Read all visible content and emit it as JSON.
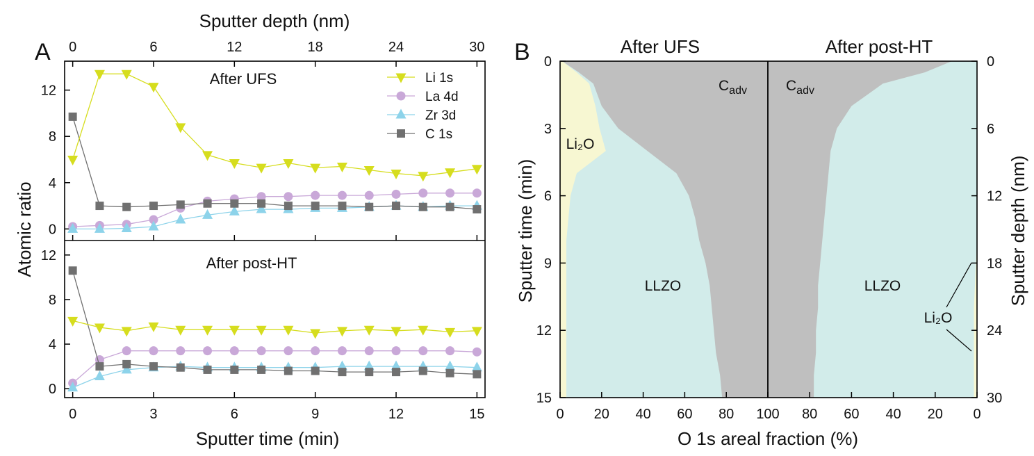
{
  "chart_data": [
    {
      "panel": "A",
      "type": "line",
      "subplots": [
        {
          "title": "After UFS",
          "ylim": [
            -1,
            14.5
          ],
          "yticks": [
            0,
            4,
            8,
            12
          ],
          "series": [
            {
              "name": "Li 1s",
              "marker": "triangle-down",
              "color": "#d6dd1e",
              "values": [
                6.0,
                13.4,
                13.4,
                12.3,
                8.8,
                6.4,
                5.7,
                5.3,
                5.7,
                5.3,
                5.4,
                5.1,
                4.8,
                4.6,
                4.9,
                5.2
              ]
            },
            {
              "name": "La 4d",
              "marker": "circle",
              "color": "#c9a8d8",
              "values": [
                0.2,
                0.3,
                0.4,
                0.8,
                1.8,
                2.4,
                2.6,
                2.8,
                2.8,
                2.9,
                2.9,
                2.9,
                3.0,
                3.1,
                3.1,
                3.1
              ]
            },
            {
              "name": "Zr 3d",
              "marker": "triangle-up",
              "color": "#8dd3ea",
              "values": [
                0.0,
                0.0,
                0.05,
                0.2,
                0.8,
                1.2,
                1.5,
                1.7,
                1.7,
                1.8,
                1.8,
                1.9,
                2.0,
                1.9,
                2.0,
                2.0
              ]
            },
            {
              "name": "C 1s",
              "marker": "square",
              "color": "#707070",
              "values": [
                9.7,
                2.0,
                1.9,
                2.0,
                2.1,
                2.2,
                2.2,
                2.2,
                2.0,
                2.0,
                2.0,
                1.9,
                2.0,
                1.9,
                1.9,
                1.7
              ]
            }
          ]
        },
        {
          "title": "After post-HT",
          "ylim": [
            -0.8,
            13.3
          ],
          "yticks": [
            0,
            4,
            8,
            12
          ],
          "series": [
            {
              "name": "Li 1s",
              "marker": "triangle-down",
              "color": "#d6dd1e",
              "values": [
                6.1,
                5.5,
                5.2,
                5.6,
                5.3,
                5.3,
                5.3,
                5.3,
                5.3,
                5.0,
                5.2,
                5.3,
                5.2,
                5.3,
                5.1,
                5.2
              ]
            },
            {
              "name": "La 4d",
              "marker": "circle",
              "color": "#c9a8d8",
              "values": [
                0.5,
                2.6,
                3.4,
                3.4,
                3.4,
                3.4,
                3.4,
                3.4,
                3.4,
                3.4,
                3.4,
                3.4,
                3.4,
                3.4,
                3.4,
                3.3
              ]
            },
            {
              "name": "Zr 3d",
              "marker": "triangle-up",
              "color": "#8dd3ea",
              "values": [
                0.1,
                1.1,
                1.7,
                1.9,
                2.0,
                1.9,
                1.9,
                1.9,
                1.9,
                1.9,
                2.0,
                2.0,
                2.0,
                2.0,
                2.0,
                1.9
              ]
            },
            {
              "name": "C 1s",
              "marker": "square",
              "color": "#707070",
              "values": [
                10.6,
                2.0,
                2.2,
                2.0,
                1.9,
                1.7,
                1.7,
                1.7,
                1.6,
                1.6,
                1.5,
                1.5,
                1.5,
                1.6,
                1.4,
                1.3
              ]
            }
          ]
        }
      ],
      "x": [
        0,
        1,
        2,
        3,
        4,
        5,
        6,
        7,
        8,
        9,
        10,
        11,
        12,
        13,
        14,
        15
      ],
      "xlim": [
        -0.3,
        15.3
      ],
      "xticks": [
        0,
        3,
        6,
        9,
        12,
        15
      ],
      "xticks_top": [
        0,
        6,
        12,
        18,
        24,
        30
      ],
      "xlabel": "Sputter time (min)",
      "xlabel_top": "Sputter depth (nm)",
      "ylabel": "Atomic ratio"
    },
    {
      "panel": "B",
      "type": "area",
      "titles": [
        "After UFS",
        "After post-HT"
      ],
      "xlabel": "O 1s areal fraction (%)",
      "ylabel_left": "Sputter time (min)",
      "ylabel_right": "Sputter depth (nm)",
      "ylim": [
        0,
        15
      ],
      "yticks_left": [
        0,
        3,
        6,
        9,
        12,
        15
      ],
      "yticks_right": [
        0,
        6,
        12,
        18,
        24,
        30
      ],
      "xticks_left": [
        0,
        20,
        40,
        60,
        80,
        100
      ],
      "xticks_right": [
        100,
        80,
        60,
        40,
        20,
        0
      ],
      "colors": {
        "Li2O": "#f7f7d2",
        "LLZO": "#d2ecea",
        "Cadv": "#bfbfbf"
      },
      "labels": {
        "Li2O": "Li₂O",
        "LLZO": "LLZO",
        "Cadv_main": "C",
        "Cadv_sub": "adv"
      },
      "ufs": {
        "time": [
          0,
          0.5,
          1,
          2,
          3,
          4,
          5,
          6,
          7,
          8,
          9,
          10,
          11,
          12,
          13,
          14,
          15
        ],
        "li2o": [
          1,
          8,
          14,
          17,
          19,
          22,
          8,
          5,
          4,
          3,
          3,
          3,
          3,
          3,
          3,
          3,
          3
        ],
        "llzo_plus_li2o": [
          1,
          9,
          16,
          20,
          28,
          42,
          56,
          62,
          65,
          67,
          70,
          72,
          73,
          74,
          75,
          77,
          78
        ]
      },
      "posthb": {
        "time": [
          0,
          0.5,
          1,
          2,
          3,
          4,
          5,
          6,
          7,
          8,
          9,
          10,
          11,
          12,
          13,
          14,
          15
        ],
        "li2o": [
          0,
          0,
          0,
          0,
          0,
          0,
          0,
          0,
          0,
          0,
          0.5,
          1,
          1.5,
          1.5,
          1.5,
          1.5,
          1.5
        ],
        "llzo_plus_li2o": [
          12,
          25,
          45,
          60,
          67,
          70,
          71,
          72,
          73,
          74,
          75,
          76,
          76,
          77,
          77,
          78,
          78
        ]
      }
    }
  ]
}
